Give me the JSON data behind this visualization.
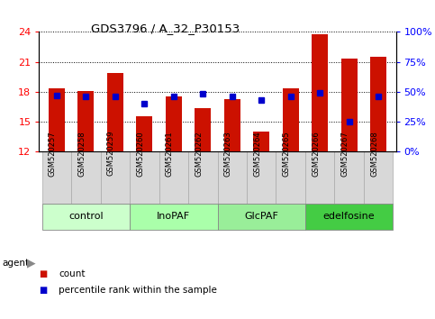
{
  "title": "GDS3796 / A_32_P30153",
  "samples": [
    "GSM520257",
    "GSM520258",
    "GSM520259",
    "GSM520260",
    "GSM520261",
    "GSM520262",
    "GSM520263",
    "GSM520264",
    "GSM520265",
    "GSM520266",
    "GSM520267",
    "GSM520268"
  ],
  "bar_heights": [
    18.3,
    18.1,
    19.9,
    15.5,
    17.5,
    16.3,
    17.2,
    14.0,
    18.3,
    23.8,
    21.3,
    21.5
  ],
  "percentile_values": [
    47,
    46,
    46,
    40,
    46,
    48,
    46,
    43,
    46,
    49,
    25,
    46
  ],
  "bar_color": "#cc1100",
  "percentile_color": "#0000cc",
  "ylim_left": [
    12,
    24
  ],
  "ylim_right": [
    0,
    100
  ],
  "yticks_left": [
    12,
    15,
    18,
    21,
    24
  ],
  "yticks_right": [
    0,
    25,
    50,
    75,
    100
  ],
  "ytick_labels_right": [
    "0%",
    "25%",
    "50%",
    "75%",
    "100%"
  ],
  "groups": [
    {
      "label": "control",
      "start": 0,
      "end": 3,
      "color": "#ccffcc"
    },
    {
      "label": "InoPAF",
      "start": 3,
      "end": 6,
      "color": "#aaffaa"
    },
    {
      "label": "GlcPAF",
      "start": 6,
      "end": 9,
      "color": "#99ee99"
    },
    {
      "label": "edelfosine",
      "start": 9,
      "end": 12,
      "color": "#44cc44"
    }
  ],
  "legend_count_color": "#cc1100",
  "legend_percentile_color": "#0000cc",
  "bar_width": 0.55,
  "ybase": 12,
  "cell_bg": "#d8d8d8"
}
